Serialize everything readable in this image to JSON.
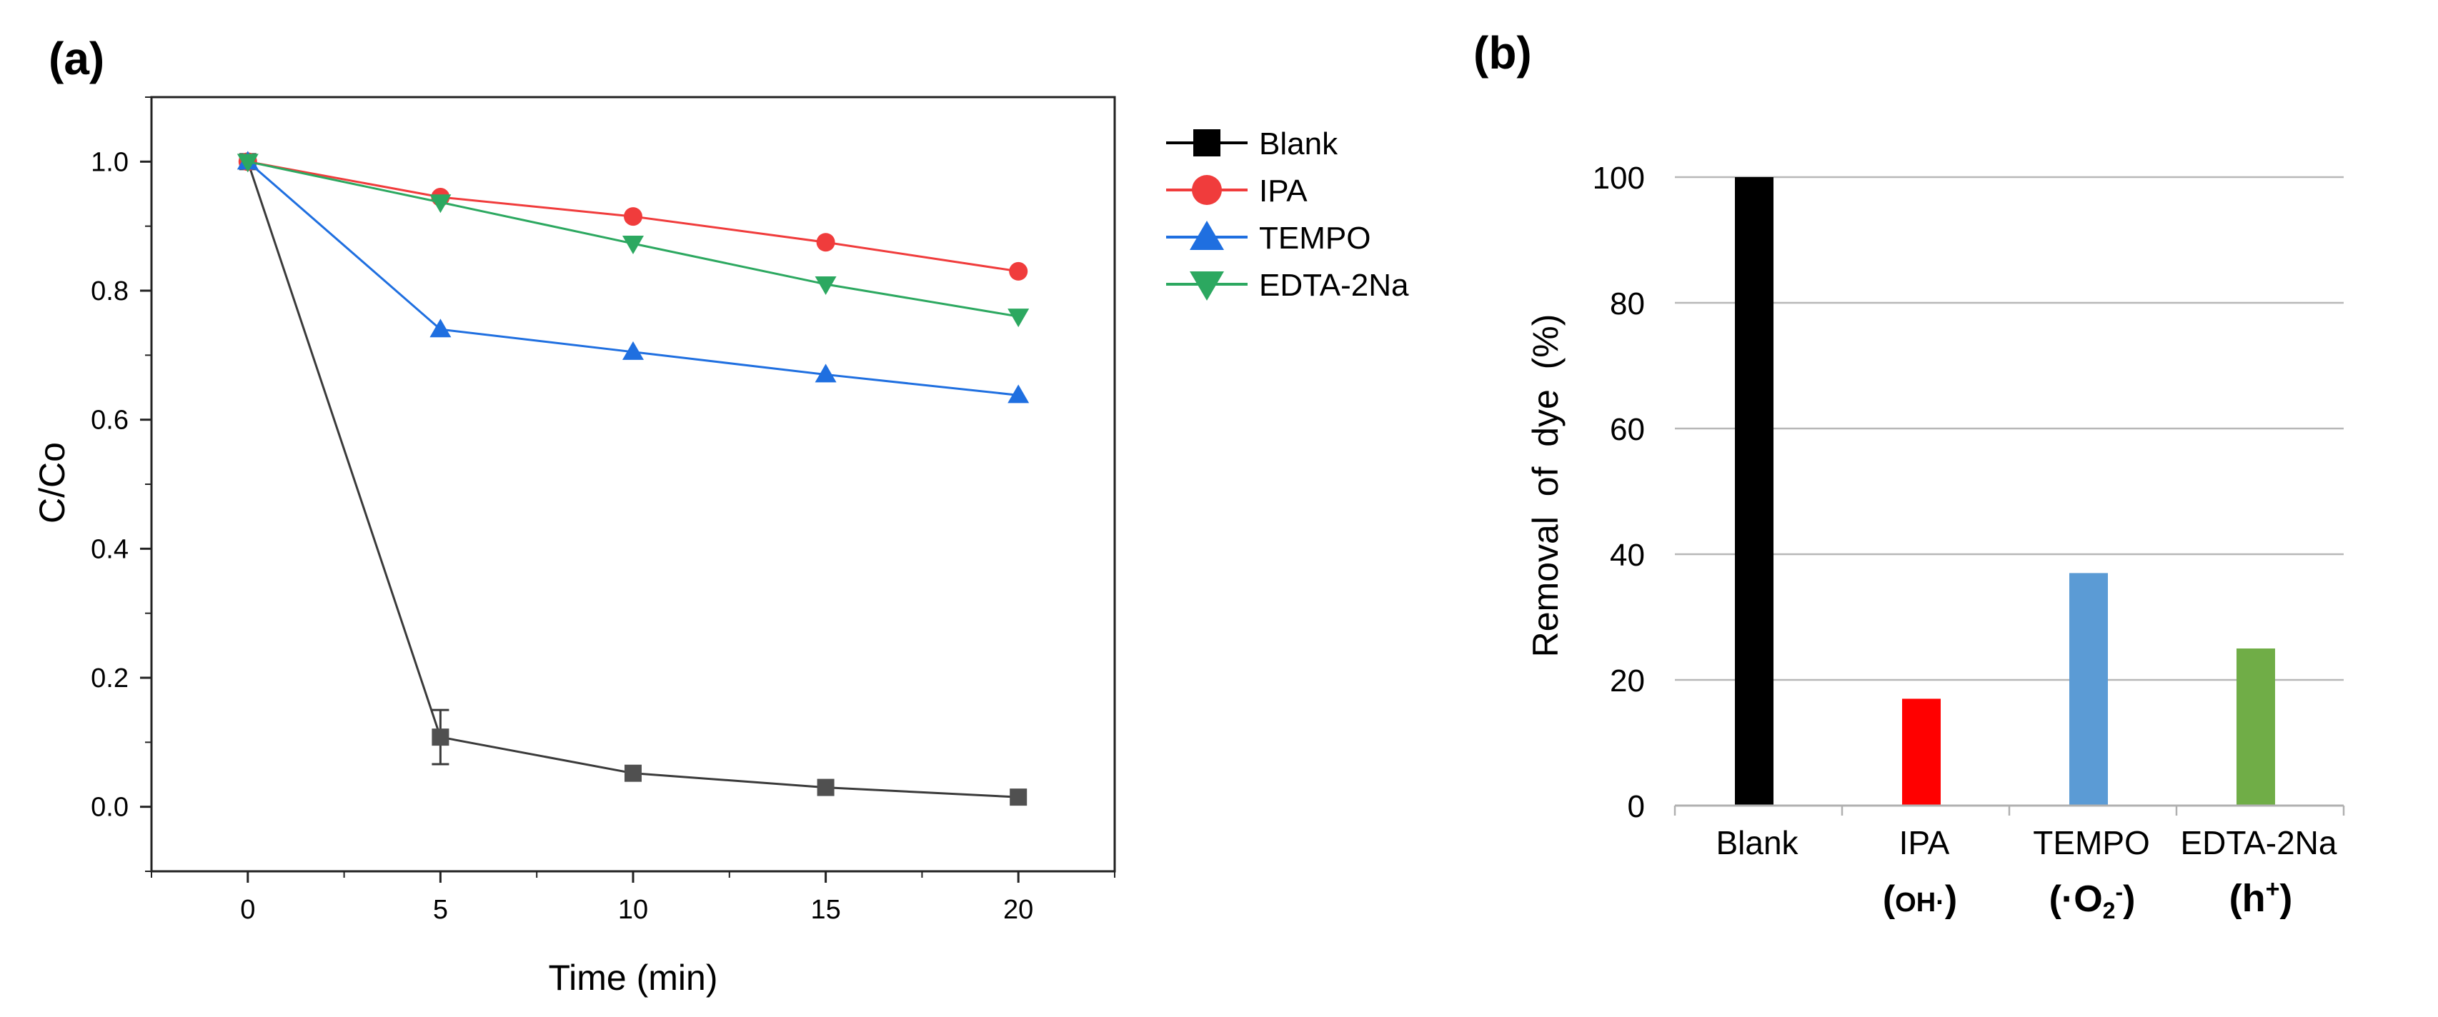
{
  "panels": {
    "a": {
      "label": "(a)"
    },
    "b": {
      "label": "(b)"
    }
  },
  "colors": {
    "blank_line": "#3a3a3a",
    "blank_marker": "#505050",
    "legend_blank": "#000000",
    "ipa": "#f03c3c",
    "tempo": "#1f6fe0",
    "edta": "#2ca860",
    "bar_blank": "#000000",
    "bar_ipa": "#ff0000",
    "bar_tempo": "#5b9bd5",
    "bar_edta": "#70ad47",
    "grid": "#b7b7b7",
    "axis": "#222222"
  },
  "chart_data": [
    {
      "type": "line",
      "panel": "(a)",
      "xlabel": "Time (min)",
      "ylabel": "C/Co",
      "xlim": [
        -2.5,
        22.5
      ],
      "ylim": [
        -0.1,
        1.1
      ],
      "x_ticks": [
        0,
        5,
        10,
        15,
        20
      ],
      "x_tick_labels": [
        "0",
        "5",
        "10",
        "15",
        "20"
      ],
      "y_ticks": [
        0.0,
        0.2,
        0.4,
        0.6,
        0.8,
        1.0
      ],
      "y_tick_labels": [
        "0.0",
        "0.2",
        "0.4",
        "0.6",
        "0.8",
        "1.0"
      ],
      "legend_position": "outside-right",
      "x": [
        0,
        5,
        10,
        15,
        20
      ],
      "series": [
        {
          "name": "Blank",
          "marker": "square",
          "color_key": "blank_line",
          "values": [
            1.0,
            0.108,
            0.052,
            0.03,
            0.015
          ],
          "error": [
            0,
            0.042,
            0.01,
            0.008,
            0.006
          ]
        },
        {
          "name": "IPA",
          "marker": "circle",
          "color_key": "ipa",
          "values": [
            1.0,
            0.945,
            0.915,
            0.875,
            0.83
          ]
        },
        {
          "name": "TEMPO",
          "marker": "triangle-up",
          "color_key": "tempo",
          "values": [
            1.0,
            0.74,
            0.705,
            0.67,
            0.638
          ]
        },
        {
          "name": "EDTA-2Na",
          "marker": "triangle-down",
          "color_key": "edta",
          "values": [
            1.0,
            0.937,
            0.873,
            0.81,
            0.76
          ]
        }
      ]
    },
    {
      "type": "bar",
      "panel": "(b)",
      "xlabel": "",
      "ylabel": "Removal  of  dye  (%)",
      "ylim": [
        0,
        100
      ],
      "y_ticks": [
        0,
        20,
        40,
        60,
        80,
        100
      ],
      "y_tick_labels": [
        "0",
        "20",
        "40",
        "60",
        "80",
        "100"
      ],
      "grid": true,
      "categories": [
        "Blank",
        "IPA",
        "TEMPO",
        "EDTA-2Na"
      ],
      "values": [
        100,
        17,
        37,
        25
      ],
      "color_keys": [
        "bar_blank",
        "bar_ipa",
        "bar_tempo",
        "bar_edta"
      ],
      "species": [
        {
          "open": "",
          "main": "",
          "sub": "",
          "sup": "",
          "close": ""
        },
        {
          "open": "(",
          "main": "OH·",
          "sub": "",
          "sup": "",
          "close": ")"
        },
        {
          "open": "(·O",
          "main": "",
          "sub": "2",
          "sup": "-",
          "close": ")"
        },
        {
          "open": "(h",
          "main": "",
          "sub": "",
          "sup": "+",
          "close": ")"
        }
      ]
    }
  ]
}
